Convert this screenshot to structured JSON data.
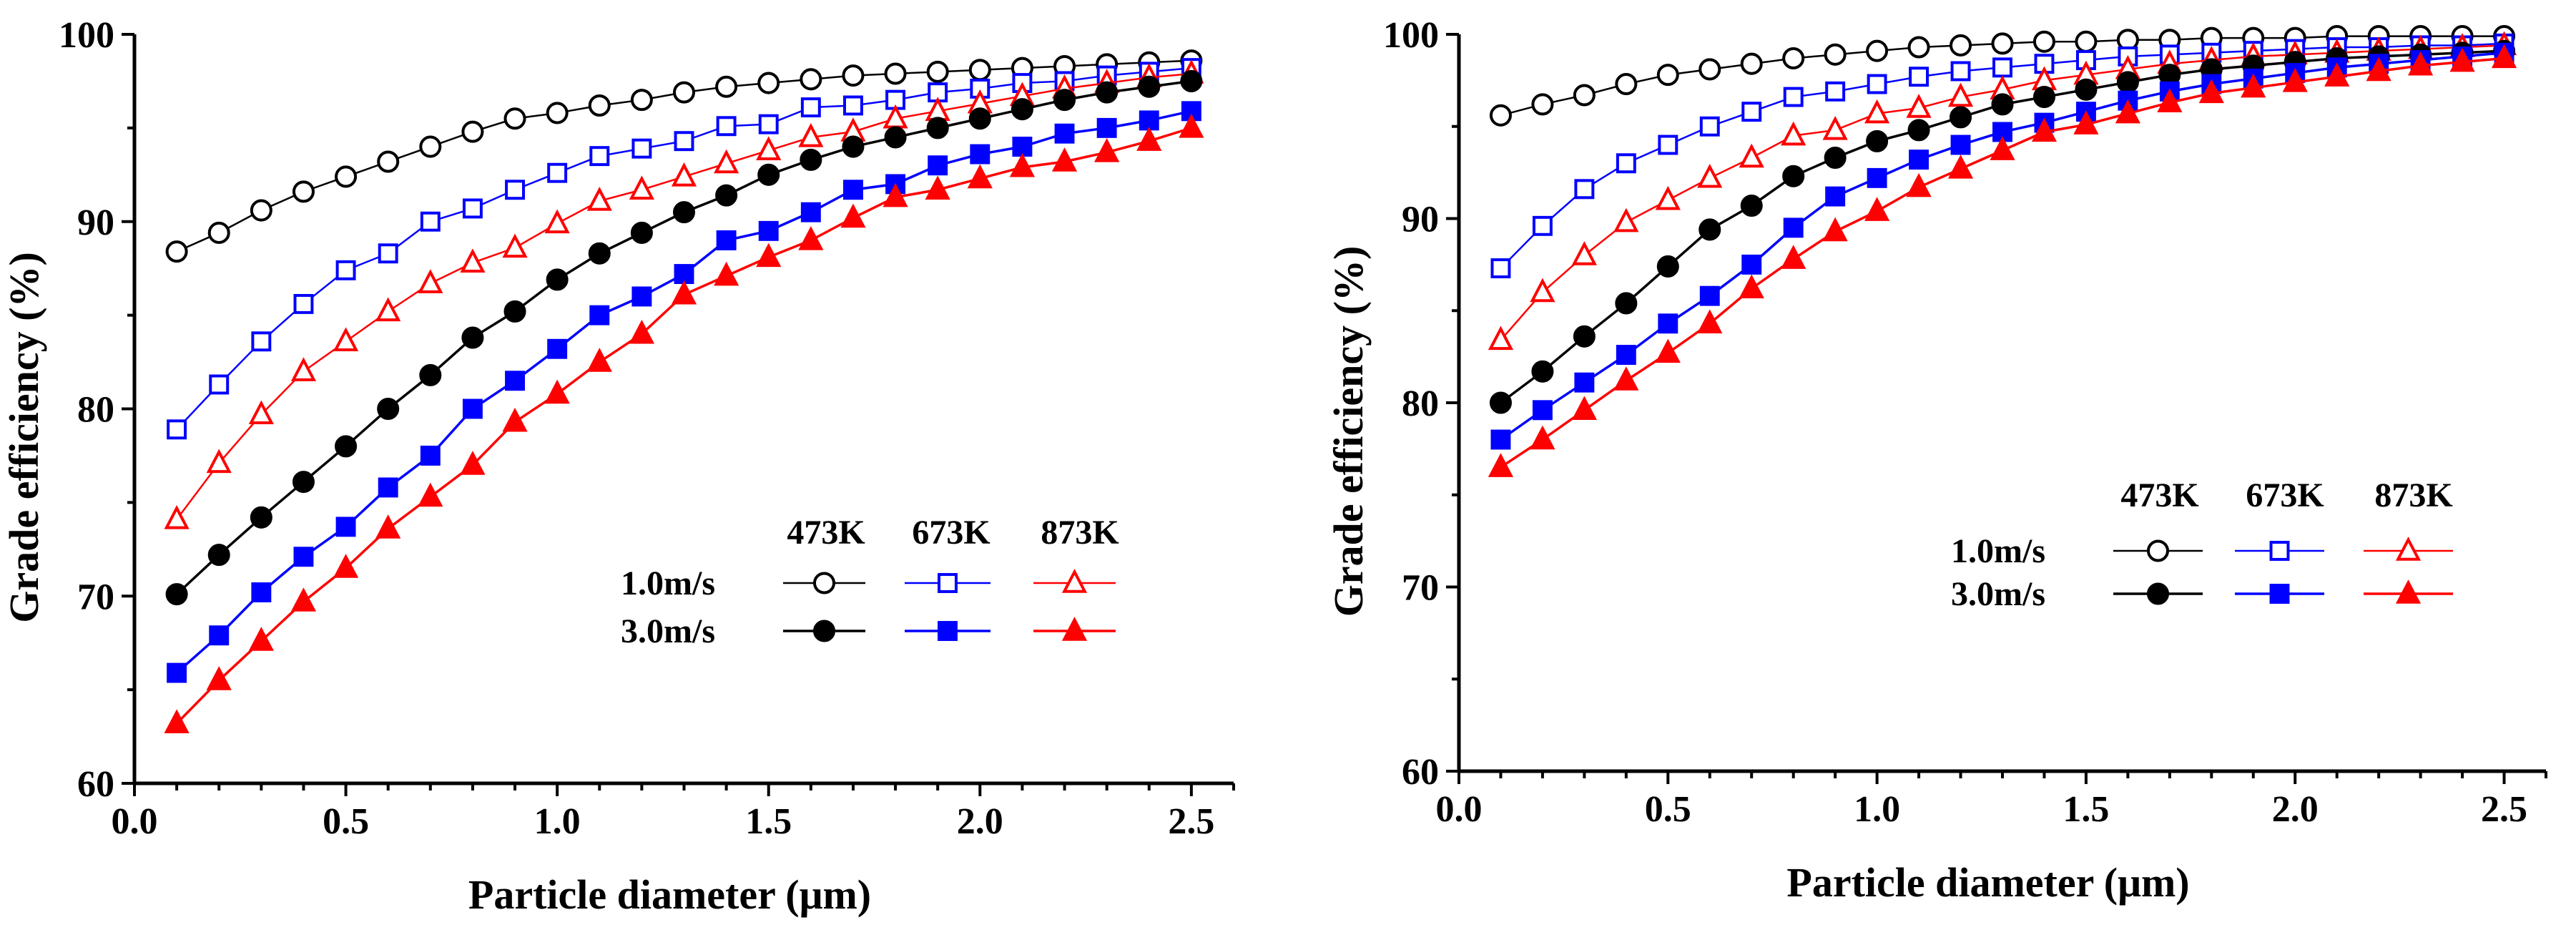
{
  "chart_data": [
    {
      "id": "left",
      "type": "line",
      "title": "",
      "xlabel": "Particle diameter (μm)",
      "ylabel": "Grade efficiency (%)",
      "xlim": [
        0.0,
        2.6
      ],
      "ylim": [
        60,
        100
      ],
      "xticks": [
        "0.0",
        "0.5",
        "1.0",
        "1.5",
        "2.0",
        "2.5"
      ],
      "yticks": [
        "60",
        "70",
        "80",
        "90",
        "100"
      ],
      "legend": {
        "placement": "center-right",
        "temperatures": [
          "473K",
          "673K",
          "873K"
        ],
        "velocities": [
          "1.0m/s",
          "3.0m/s"
        ]
      },
      "x": [
        0.1,
        0.2,
        0.3,
        0.4,
        0.5,
        0.6,
        0.7,
        0.8,
        0.9,
        1.0,
        1.1,
        1.2,
        1.3,
        1.4,
        1.5,
        1.6,
        1.7,
        1.8,
        1.9,
        2.0,
        2.1,
        2.2,
        2.3,
        2.4,
        2.5
      ],
      "series": [
        {
          "name": "1.0m/s 473K",
          "color": "#000000",
          "marker": "circle",
          "filled": false,
          "values": [
            88.4,
            89.4,
            90.6,
            91.6,
            92.4,
            93.2,
            94.0,
            94.8,
            95.5,
            95.8,
            96.2,
            96.5,
            96.9,
            97.2,
            97.4,
            97.6,
            97.8,
            97.9,
            98.0,
            98.1,
            98.2,
            98.3,
            98.4,
            98.5,
            98.6
          ]
        },
        {
          "name": "1.0m/s 673K",
          "color": "#0000ff",
          "marker": "square",
          "filled": false,
          "values": [
            78.9,
            81.3,
            83.6,
            85.6,
            87.4,
            88.3,
            90.0,
            90.7,
            91.7,
            92.6,
            93.5,
            93.9,
            94.3,
            95.1,
            95.2,
            96.1,
            96.2,
            96.5,
            96.9,
            97.1,
            97.4,
            97.5,
            97.8,
            98.0,
            98.2
          ]
        },
        {
          "name": "1.0m/s 873K",
          "color": "#ff0000",
          "marker": "triangle",
          "filled": false,
          "values": [
            74.1,
            77.1,
            79.7,
            82.0,
            83.6,
            85.2,
            86.7,
            87.8,
            88.6,
            89.9,
            91.1,
            91.7,
            92.4,
            93.1,
            93.8,
            94.5,
            94.8,
            95.5,
            95.9,
            96.3,
            96.7,
            97.1,
            97.4,
            97.7,
            97.9
          ]
        },
        {
          "name": "3.0m/s 473K",
          "color": "#000000",
          "marker": "circle",
          "filled": true,
          "values": [
            70.1,
            72.2,
            74.2,
            76.1,
            78.0,
            80.0,
            81.8,
            83.8,
            85.2,
            86.9,
            88.3,
            89.4,
            90.5,
            91.4,
            92.5,
            93.3,
            94.0,
            94.5,
            95.0,
            95.5,
            96.0,
            96.5,
            96.9,
            97.2,
            97.5
          ]
        },
        {
          "name": "3.0m/s 673K",
          "color": "#0000ff",
          "marker": "square",
          "filled": true,
          "values": [
            65.9,
            67.9,
            70.2,
            72.1,
            73.7,
            75.8,
            77.5,
            80.0,
            81.5,
            83.2,
            85.0,
            86.0,
            87.2,
            89.0,
            89.5,
            90.5,
            91.7,
            92.0,
            93.0,
            93.6,
            94.0,
            94.7,
            95.0,
            95.4,
            95.9
          ]
        },
        {
          "name": "3.0m/s 873K",
          "color": "#ff0000",
          "marker": "triangle",
          "filled": true,
          "values": [
            63.2,
            65.5,
            67.6,
            69.7,
            71.5,
            73.6,
            75.3,
            77.0,
            79.3,
            80.8,
            82.5,
            84.0,
            86.1,
            87.1,
            88.1,
            89.0,
            90.2,
            91.3,
            91.7,
            92.3,
            92.9,
            93.2,
            93.7,
            94.3,
            95.0
          ]
        }
      ]
    },
    {
      "id": "right",
      "type": "line",
      "title": "",
      "xlabel": "Particle diameter (μm)",
      "ylabel": "Grade efficiency (%)",
      "xlim": [
        0.0,
        2.6
      ],
      "ylim": [
        60,
        100
      ],
      "xticks": [
        "0.0",
        "0.5",
        "1.0",
        "1.5",
        "2.0",
        "2.5"
      ],
      "yticks": [
        "60",
        "70",
        "80",
        "90",
        "100"
      ],
      "legend": {
        "placement": "center-right",
        "temperatures": [
          "473K",
          "673K",
          "873K"
        ],
        "velocities": [
          "1.0m/s",
          "3.0m/s"
        ]
      },
      "x": [
        0.1,
        0.2,
        0.3,
        0.4,
        0.5,
        0.6,
        0.7,
        0.8,
        0.9,
        1.0,
        1.1,
        1.2,
        1.3,
        1.4,
        1.5,
        1.6,
        1.7,
        1.8,
        1.9,
        2.0,
        2.1,
        2.2,
        2.3,
        2.4,
        2.5
      ],
      "series": [
        {
          "name": "1.0m/s 473K",
          "color": "#000000",
          "marker": "circle",
          "filled": false,
          "values": [
            95.6,
            96.2,
            96.7,
            97.3,
            97.8,
            98.1,
            98.4,
            98.7,
            98.9,
            99.1,
            99.3,
            99.4,
            99.5,
            99.6,
            99.6,
            99.7,
            99.7,
            99.8,
            99.8,
            99.8,
            99.9,
            99.9,
            99.9,
            99.9,
            99.9
          ]
        },
        {
          "name": "1.0m/s 673K",
          "color": "#0000ff",
          "marker": "square",
          "filled": false,
          "values": [
            87.3,
            89.6,
            91.6,
            93.0,
            94.0,
            95.0,
            95.8,
            96.6,
            96.9,
            97.3,
            97.7,
            98.0,
            98.2,
            98.4,
            98.6,
            98.8,
            98.9,
            99.0,
            99.1,
            99.2,
            99.3,
            99.3,
            99.4,
            99.4,
            99.5
          ]
        },
        {
          "name": "1.0m/s 873K",
          "color": "#ff0000",
          "marker": "triangle",
          "filled": false,
          "values": [
            83.4,
            86.0,
            88.0,
            89.8,
            91.0,
            92.2,
            93.3,
            94.5,
            94.8,
            95.7,
            96.0,
            96.6,
            97.0,
            97.5,
            97.8,
            98.1,
            98.4,
            98.6,
            98.8,
            98.9,
            99.0,
            99.1,
            99.2,
            99.3,
            99.4
          ]
        },
        {
          "name": "3.0m/s 473K",
          "color": "#000000",
          "marker": "circle",
          "filled": true,
          "values": [
            80.0,
            81.7,
            83.6,
            85.4,
            87.4,
            89.4,
            90.7,
            92.3,
            93.3,
            94.2,
            94.8,
            95.5,
            96.2,
            96.6,
            97.0,
            97.4,
            97.8,
            98.1,
            98.3,
            98.5,
            98.7,
            98.8,
            98.9,
            99.0,
            99.1
          ]
        },
        {
          "name": "3.0m/s 673K",
          "color": "#0000ff",
          "marker": "square",
          "filled": true,
          "values": [
            78.0,
            79.6,
            81.1,
            82.6,
            84.3,
            85.8,
            87.5,
            89.5,
            91.2,
            92.2,
            93.2,
            94.0,
            94.7,
            95.2,
            95.8,
            96.4,
            96.9,
            97.3,
            97.6,
            97.9,
            98.2,
            98.4,
            98.6,
            98.8,
            99.0
          ]
        },
        {
          "name": "3.0m/s 873K",
          "color": "#ff0000",
          "marker": "triangle",
          "filled": true,
          "values": [
            76.5,
            78.0,
            79.6,
            81.2,
            82.7,
            84.3,
            86.2,
            87.8,
            89.3,
            90.4,
            91.7,
            92.7,
            93.7,
            94.7,
            95.1,
            95.7,
            96.3,
            96.8,
            97.1,
            97.4,
            97.7,
            98.0,
            98.3,
            98.5,
            98.7
          ]
        }
      ]
    }
  ]
}
